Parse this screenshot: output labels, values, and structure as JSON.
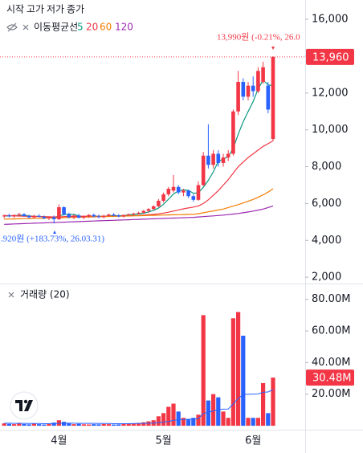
{
  "chart_data": [
    {
      "type": "candlestick",
      "ohlc_labels": [
        "시작",
        "고가",
        "저가",
        "종가"
      ],
      "indicator": "이동평균선",
      "categories": [
        null,
        null,
        null,
        null,
        null,
        null,
        null,
        null,
        null,
        null,
        null,
        "4월",
        null,
        null,
        null,
        null,
        null,
        null,
        null,
        null,
        null,
        null,
        null,
        null,
        null,
        null,
        null,
        null,
        null,
        null,
        null,
        null,
        "5월",
        null,
        null,
        null,
        null,
        null,
        null,
        null,
        null,
        null,
        null,
        null,
        null,
        null,
        null,
        null,
        null,
        null,
        "6월",
        null,
        null,
        null,
        null
      ],
      "open": [
        5300,
        5350,
        5300,
        5380,
        5420,
        5320,
        5250,
        5330,
        5280,
        5200,
        5250,
        5150,
        5800,
        5420,
        5250,
        5350,
        5230,
        5300,
        5380,
        5300,
        5260,
        5340,
        5400,
        5350,
        5300,
        5380,
        5420,
        5460,
        5500,
        5600,
        5700,
        5850,
        6150,
        6500,
        6700,
        6900,
        6600,
        6700,
        6400,
        6200,
        7000,
        8600,
        8100,
        8700,
        8200,
        8500,
        8700,
        11000,
        12600,
        11800,
        12400,
        12100,
        12600,
        12400,
        9500
      ],
      "high": [
        5400,
        5450,
        5400,
        5500,
        5480,
        5400,
        5380,
        5420,
        5350,
        5300,
        5350,
        5950,
        5850,
        5500,
        5400,
        5450,
        5350,
        5420,
        5450,
        5400,
        5380,
        5450,
        5480,
        5420,
        5400,
        5460,
        5500,
        5560,
        5650,
        5750,
        5900,
        6250,
        6600,
        6900,
        7550,
        7000,
        6800,
        6750,
        6500,
        7200,
        8800,
        10300,
        8900,
        8900,
        8700,
        8900,
        11100,
        13200,
        12800,
        12600,
        12900,
        13400,
        13700,
        12600,
        13990
      ],
      "low": [
        5200,
        5250,
        5220,
        5300,
        5280,
        5200,
        5180,
        5250,
        5150,
        5100,
        4920,
        5100,
        5350,
        5200,
        5150,
        5200,
        5150,
        5220,
        5250,
        5200,
        5200,
        5280,
        5300,
        5250,
        5240,
        5320,
        5350,
        5400,
        5450,
        5500,
        5650,
        5800,
        6050,
        6400,
        6600,
        6500,
        6400,
        6300,
        6100,
        6150,
        6950,
        7900,
        7900,
        8000,
        8000,
        8300,
        8600,
        10800,
        11600,
        11600,
        11800,
        12000,
        12500,
        10900,
        9400
      ],
      "close": [
        5350,
        5300,
        5380,
        5420,
        5320,
        5250,
        5330,
        5280,
        5200,
        5250,
        5150,
        5800,
        5420,
        5250,
        5350,
        5230,
        5300,
        5380,
        5300,
        5260,
        5340,
        5400,
        5350,
        5300,
        5380,
        5420,
        5460,
        5500,
        5600,
        5700,
        5850,
        6150,
        6500,
        6800,
        6900,
        6600,
        6700,
        6400,
        6200,
        7000,
        8600,
        8100,
        8700,
        8200,
        8500,
        8700,
        11000,
        12600,
        11800,
        12400,
        12100,
        13200,
        13400,
        11100,
        13960
      ],
      "up_color": "#f23645",
      "down_color": "#2962ff",
      "series": [
        {
          "name": "5",
          "color": "#089981",
          "values": [
            5320,
            5330,
            5340,
            5350,
            5360,
            5330,
            5310,
            5300,
            5280,
            5250,
            5240,
            5330,
            5400,
            5420,
            5410,
            5320,
            5280,
            5300,
            5310,
            5310,
            5300,
            5330,
            5340,
            5340,
            5350,
            5380,
            5400,
            5430,
            5470,
            5540,
            5630,
            5750,
            5960,
            6230,
            6520,
            6680,
            6740,
            6720,
            6560,
            6580,
            6880,
            7260,
            7720,
            8280,
            8420,
            8540,
            9000,
            9760,
            10440,
            11000,
            11540,
            12220,
            12700,
            12440,
            12400
          ]
        },
        {
          "name": "20",
          "color": "#f23645",
          "values": [
            5350,
            5340,
            5330,
            5320,
            5310,
            5300,
            5300,
            5290,
            5290,
            5280,
            5270,
            5270,
            5290,
            5300,
            5300,
            5300,
            5310,
            5310,
            5310,
            5300,
            5300,
            5300,
            5310,
            5320,
            5320,
            5330,
            5340,
            5350,
            5370,
            5390,
            5410,
            5440,
            5480,
            5530,
            5590,
            5650,
            5710,
            5760,
            5810,
            5870,
            6000,
            6200,
            6450,
            6700,
            7000,
            7300,
            7650,
            8000,
            8250,
            8500,
            8700,
            8900,
            9100,
            9250,
            9400
          ]
        },
        {
          "name": "60",
          "color": "#f57c00",
          "values": [
            5150,
            5157,
            5164,
            5171,
            5178,
            5185,
            5192,
            5199,
            5206,
            5213,
            5220,
            5227,
            5234,
            5241,
            5248,
            5255,
            5262,
            5269,
            5276,
            5283,
            5290,
            5297,
            5304,
            5311,
            5318,
            5325,
            5332,
            5339,
            5346,
            5353,
            5360,
            5367,
            5374,
            5381,
            5388,
            5395,
            5402,
            5409,
            5416,
            5450,
            5500,
            5550,
            5600,
            5650,
            5700,
            5780,
            5860,
            5940,
            6030,
            6120,
            6220,
            6340,
            6470,
            6620,
            6800
          ]
        },
        {
          "name": "120",
          "color": "#9c27b0",
          "values": [
            4870,
            4880,
            4890,
            4900,
            4910,
            4920,
            4930,
            4940,
            4950,
            4960,
            4970,
            4980,
            4990,
            5000,
            5010,
            5020,
            5030,
            5040,
            5050,
            5060,
            5070,
            5080,
            5090,
            5100,
            5110,
            5120,
            5130,
            5140,
            5150,
            5160,
            5170,
            5180,
            5190,
            5200,
            5210,
            5220,
            5230,
            5240,
            5250,
            5270,
            5290,
            5310,
            5330,
            5350,
            5370,
            5400,
            5430,
            5460,
            5500,
            5540,
            5590,
            5640,
            5700,
            5780,
            5870
          ]
        }
      ],
      "ylim": [
        1700,
        17050
      ],
      "yticks": [
        {
          "value": 2000,
          "label": "2,000"
        },
        {
          "value": 4000,
          "label": "4,000"
        },
        {
          "value": 6000,
          "label": "6,000"
        },
        {
          "value": 8000,
          "label": "8,000"
        },
        {
          "value": 10000,
          "label": "10,000"
        },
        {
          "value": 12000,
          "label": "12,000"
        },
        {
          "value": 14000,
          "label": "14,000"
        },
        {
          "value": 16000,
          "label": "16,000"
        }
      ],
      "grid": false,
      "last_price": {
        "value": 13960,
        "label": "13,960"
      },
      "annotations": [
        "13,990원 (-0.21%, 26.0",
        ".920원 (+183.73%, 26.03.31)"
      ]
    },
    {
      "type": "bar",
      "title": "거래량 (20)",
      "values": [
        1.5,
        1.2,
        1.0,
        1.8,
        1.1,
        0.9,
        1.3,
        1.0,
        0.8,
        1.1,
        2.0,
        3.5,
        2.5,
        1.5,
        1.0,
        1.2,
        0.9,
        0.8,
        1.0,
        0.9,
        1.1,
        1.0,
        0.8,
        0.9,
        1.2,
        1.3,
        1.5,
        1.8,
        2.2,
        2.8,
        3.5,
        6,
        8,
        12,
        14,
        9,
        5,
        4,
        5,
        7,
        70,
        16,
        20,
        18,
        9,
        5,
        68,
        72,
        57,
        5,
        5,
        5,
        27,
        8,
        30.48
      ],
      "ma_values": [
        1.6,
        1.6,
        1.5,
        1.5,
        1.5,
        1.4,
        1.4,
        1.4,
        1.3,
        1.3,
        1.4,
        1.5,
        1.6,
        1.6,
        1.6,
        1.5,
        1.5,
        1.5,
        1.5,
        1.4,
        1.4,
        1.4,
        1.3,
        1.3,
        1.3,
        1.3,
        1.4,
        1.4,
        1.5,
        1.6,
        1.7,
        2.0,
        2.3,
        2.8,
        3.4,
        3.8,
        4.0,
        4.1,
        4.2,
        4.4,
        7.8,
        8.5,
        9.4,
        10.2,
        10.5,
        10.6,
        13.8,
        17.2,
        19.8,
        19.9,
        20.0,
        20.1,
        21.2,
        21.4,
        22.8
      ],
      "ma_color": "#2962ff",
      "ylim": [
        -2.5,
        89
      ],
      "yticks": [
        {
          "value": 20,
          "label": "20.00M"
        },
        {
          "value": 40,
          "label": "40.00M"
        },
        {
          "value": 60,
          "label": "60.00M"
        },
        {
          "value": 80,
          "label": "80.00M"
        }
      ],
      "last_value": {
        "value": 30.48,
        "label": "30.48M"
      }
    }
  ]
}
